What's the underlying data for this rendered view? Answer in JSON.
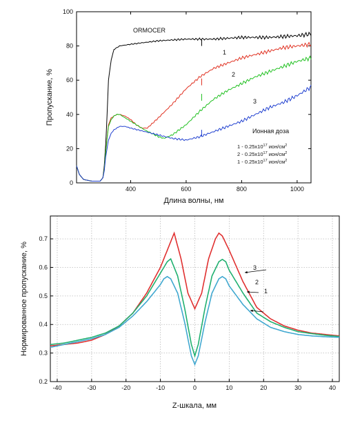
{
  "chart_data": [
    {
      "type": "line",
      "ylabel": "Пропускание, %",
      "xlabel": "Длина волны, нм",
      "xlim": [
        205,
        1050
      ],
      "ylim": [
        0,
        100
      ],
      "xticks": [
        400,
        600,
        800,
        1000
      ],
      "yticks": [
        0,
        20,
        40,
        60,
        80,
        100
      ],
      "grid": false,
      "annotations": {
        "sample": "ORMOCER",
        "curve_labels": [
          "1",
          "2",
          "3"
        ],
        "legend_title": "Ионная доза",
        "legend_lines": [
          {
            "prefix": "1 - 0.25x10",
            "exp": "17",
            "unit": " ион/см",
            "sup": "2"
          },
          {
            "prefix": "2 - 0.25x10",
            "exp": "17",
            "unit": " ион/см",
            "sup": "2"
          },
          {
            "prefix": "1 - 0.25x10",
            "exp": "17",
            "unit": " ион/см",
            "sup": "2"
          }
        ]
      },
      "series": [
        {
          "color": "#000000",
          "x": [
            205,
            215,
            230,
            260,
            290,
            300,
            305,
            310,
            315,
            320,
            330,
            340,
            360,
            400,
            450,
            500,
            600,
            700,
            800,
            900,
            1000,
            1050
          ],
          "y": [
            10,
            5,
            2,
            1,
            1,
            3,
            10,
            22,
            40,
            60,
            72,
            78,
            80,
            81,
            82,
            83,
            84,
            84,
            85,
            85,
            86,
            87
          ]
        },
        {
          "color": "#e03020",
          "x": [
            205,
            215,
            230,
            260,
            290,
            300,
            305,
            310,
            320,
            330,
            340,
            350,
            360,
            380,
            400,
            420,
            440,
            460,
            480,
            500,
            550,
            600,
            650,
            700,
            750,
            800,
            850,
            900,
            950,
            1000,
            1050
          ],
          "y": [
            10,
            5,
            2,
            1,
            1,
            3,
            8,
            18,
            34,
            38,
            39,
            40,
            40,
            39,
            37,
            34,
            32,
            32,
            35,
            38,
            46,
            55,
            62,
            67,
            70,
            73,
            75,
            77,
            79,
            80,
            81
          ]
        },
        {
          "color": "#20c020",
          "x": [
            205,
            215,
            230,
            260,
            290,
            300,
            305,
            310,
            320,
            330,
            340,
            350,
            360,
            380,
            400,
            450,
            500,
            520,
            550,
            600,
            650,
            700,
            750,
            800,
            850,
            900,
            950,
            1000,
            1050
          ],
          "y": [
            10,
            5,
            2,
            1,
            1,
            3,
            8,
            18,
            33,
            37,
            39,
            40,
            40,
            38,
            36,
            31,
            27,
            26,
            28,
            34,
            42,
            49,
            54,
            58,
            62,
            65,
            68,
            71,
            73
          ]
        },
        {
          "color": "#2040d0",
          "x": [
            205,
            215,
            230,
            260,
            290,
            300,
            305,
            310,
            320,
            330,
            340,
            350,
            360,
            380,
            400,
            450,
            500,
            550,
            600,
            650,
            700,
            750,
            800,
            850,
            900,
            950,
            1000,
            1050
          ],
          "y": [
            10,
            5,
            2,
            1,
            1,
            3,
            7,
            15,
            25,
            29,
            31,
            32,
            33,
            33,
            32,
            30,
            28,
            26,
            25,
            27,
            30,
            33,
            36,
            40,
            44,
            47,
            51,
            56
          ]
        }
      ]
    },
    {
      "type": "line",
      "ylabel": "Нормированное пропускание, %",
      "xlabel": "Z-шкала, мм",
      "xlim": [
        -42,
        42
      ],
      "ylim": [
        0.2,
        0.78
      ],
      "xticks": [
        -40,
        -30,
        -20,
        -10,
        0,
        10,
        20,
        30,
        40
      ],
      "yticks": [
        0.2,
        0.3,
        0.4,
        0.5,
        0.6,
        0.7
      ],
      "grid": true,
      "annotations": {
        "curve_labels": [
          "3",
          "2",
          "1"
        ]
      },
      "series": [
        {
          "color": "#e03030",
          "x": [
            -42,
            -38,
            -34,
            -30,
            -26,
            -22,
            -18,
            -14,
            -10,
            -8,
            -7,
            -6,
            -4,
            -2,
            0,
            2,
            4,
            6,
            7,
            8,
            10,
            14,
            18,
            22,
            26,
            30,
            34,
            38,
            42
          ],
          "y": [
            0.325,
            0.33,
            0.335,
            0.345,
            0.365,
            0.395,
            0.44,
            0.51,
            0.6,
            0.66,
            0.69,
            0.72,
            0.63,
            0.51,
            0.455,
            0.51,
            0.63,
            0.7,
            0.72,
            0.71,
            0.66,
            0.55,
            0.46,
            0.42,
            0.395,
            0.38,
            0.37,
            0.365,
            0.36
          ]
        },
        {
          "color": "#20b070",
          "x": [
            -42,
            -38,
            -34,
            -30,
            -26,
            -22,
            -18,
            -14,
            -10,
            -9,
            -8,
            -7,
            -5,
            -3,
            -1,
            0,
            1,
            3,
            5,
            7,
            8,
            9,
            10,
            14,
            18,
            22,
            26,
            30,
            34,
            38,
            42
          ],
          "y": [
            0.33,
            0.335,
            0.345,
            0.355,
            0.37,
            0.395,
            0.44,
            0.5,
            0.58,
            0.6,
            0.62,
            0.63,
            0.57,
            0.46,
            0.33,
            0.29,
            0.33,
            0.46,
            0.57,
            0.62,
            0.628,
            0.62,
            0.59,
            0.51,
            0.44,
            0.41,
            0.39,
            0.375,
            0.368,
            0.362,
            0.358
          ]
        },
        {
          "color": "#40a8d0",
          "x": [
            -42,
            -38,
            -34,
            -30,
            -26,
            -22,
            -18,
            -14,
            -10,
            -9,
            -8,
            -7,
            -5,
            -3,
            -1,
            0,
            1,
            3,
            5,
            7,
            8,
            9,
            10,
            14,
            18,
            22,
            26,
            30,
            34,
            38,
            42
          ],
          "y": [
            0.32,
            0.33,
            0.34,
            0.35,
            0.365,
            0.39,
            0.43,
            0.48,
            0.54,
            0.56,
            0.568,
            0.56,
            0.51,
            0.41,
            0.29,
            0.26,
            0.29,
            0.41,
            0.51,
            0.56,
            0.568,
            0.56,
            0.535,
            0.47,
            0.42,
            0.39,
            0.375,
            0.365,
            0.36,
            0.357,
            0.355
          ]
        }
      ]
    }
  ]
}
